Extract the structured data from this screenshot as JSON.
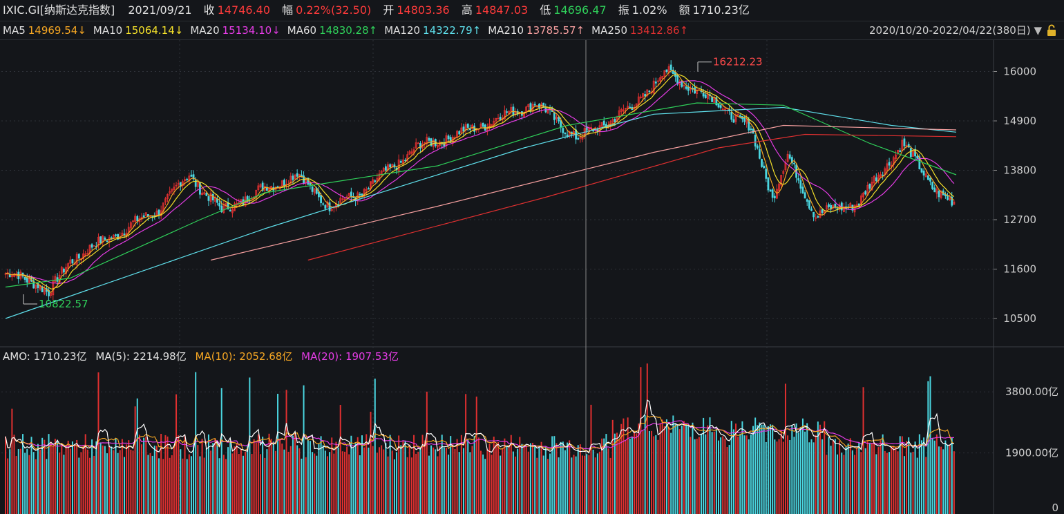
{
  "header": {
    "code": "IXIC.GI[纳斯达克指数]",
    "date": "2021/09/21",
    "close_label": "收",
    "close": "14746.40",
    "change_label": "幅",
    "change": "0.22%(32.50)",
    "open_label": "开",
    "open": "14803.36",
    "high_label": "高",
    "high": "14847.03",
    "low_label": "低",
    "low": "14696.47",
    "amp_label": "振",
    "amp": "1.02%",
    "amount_label": "额",
    "amount": "1710.23亿"
  },
  "ma_legend": [
    {
      "label": "MA5",
      "value": "14969.54↓",
      "color": "#f5a623"
    },
    {
      "label": "MA10",
      "value": "15064.14↓",
      "color": "#f5e12a"
    },
    {
      "label": "MA20",
      "value": "15134.10↓",
      "color": "#e53ce5"
    },
    {
      "label": "MA60",
      "value": "14830.28↑",
      "color": "#2fd05a"
    },
    {
      "label": "MA120",
      "value": "14322.79↑",
      "color": "#5fe0ec"
    },
    {
      "label": "MA210",
      "value": "13785.57↑",
      "color": "#f7a0a0"
    },
    {
      "label": "MA250",
      "value": "13412.86↑",
      "color": "#e03030"
    }
  ],
  "range_label": "2020/10/20-2022/04/22(380日)",
  "amo_legend": {
    "amo": "AMO: 1710.23亿",
    "ma5": "MA(5): 2214.98亿",
    "ma10": "MA(10): 2052.68亿",
    "ma20": "MA(20): 1907.53亿"
  },
  "colors": {
    "up": "#e03030",
    "down": "#4ad6e0",
    "bg": "#14161a",
    "grid": "#2e3138"
  },
  "chart_data": [
    {
      "type": "candlestick",
      "y_ticks": [
        10500,
        11600,
        12700,
        13800,
        14900,
        16000
      ],
      "ylim": [
        9900,
        16700
      ],
      "annotations": [
        {
          "text": "16212.23",
          "value": 16212.23,
          "kind": "max"
        },
        {
          "text": "10822.57",
          "value": 10822.57,
          "kind": "min"
        }
      ],
      "keypoints": [
        [
          0,
          11500
        ],
        [
          15,
          11300
        ],
        [
          20,
          11050
        ],
        [
          30,
          11800
        ],
        [
          50,
          12350
        ],
        [
          70,
          12900
        ],
        [
          85,
          13700
        ],
        [
          100,
          12900
        ],
        [
          120,
          13400
        ],
        [
          135,
          13700
        ],
        [
          150,
          13000
        ],
        [
          165,
          13300
        ],
        [
          190,
          14300
        ],
        [
          215,
          14700
        ],
        [
          245,
          15300
        ],
        [
          265,
          14500
        ],
        [
          290,
          15200
        ],
        [
          305,
          16000
        ],
        [
          330,
          15300
        ],
        [
          345,
          14700
        ],
        [
          355,
          13200
        ],
        [
          362,
          14100
        ],
        [
          375,
          12800
        ],
        [
          395,
          13100
        ],
        [
          415,
          14400
        ],
        [
          430,
          13400
        ],
        [
          438,
          13050
        ]
      ],
      "overlay_lines": [
        {
          "name": "MA120",
          "color": "#5fe0ec",
          "start": 0,
          "points": [
            [
              0,
              10500
            ],
            [
              120,
              12500
            ],
            [
              240,
              14300
            ],
            [
              300,
              15050
            ],
            [
              360,
              15200
            ],
            [
              410,
              14800
            ],
            [
              440,
              14650
            ]
          ]
        },
        {
          "name": "MA60",
          "color": "#2fd05a",
          "start": 0,
          "points": [
            [
              0,
              11200
            ],
            [
              30,
              11400
            ],
            [
              90,
              12700
            ],
            [
              120,
              13300
            ],
            [
              200,
              13900
            ],
            [
              260,
              14800
            ],
            [
              320,
              15300
            ],
            [
              360,
              15250
            ],
            [
              400,
              14400
            ],
            [
              440,
              13700
            ]
          ]
        },
        {
          "name": "MA210",
          "color": "#f7a0a0",
          "start": 95,
          "points": [
            [
              95,
              11800
            ],
            [
              200,
              13000
            ],
            [
              300,
              14200
            ],
            [
              360,
              14800
            ],
            [
              440,
              14700
            ]
          ]
        },
        {
          "name": "MA250",
          "color": "#e03030",
          "start": 140,
          "points": [
            [
              140,
              11800
            ],
            [
              250,
              13200
            ],
            [
              330,
              14300
            ],
            [
              370,
              14600
            ],
            [
              440,
              14550
            ]
          ]
        }
      ]
    },
    {
      "type": "bar",
      "y_ticks": [
        "0",
        "1900.00亿",
        "3800.00亿"
      ],
      "tick_values": [
        0,
        1900,
        3800
      ],
      "ylim": [
        0,
        4600
      ]
    }
  ]
}
